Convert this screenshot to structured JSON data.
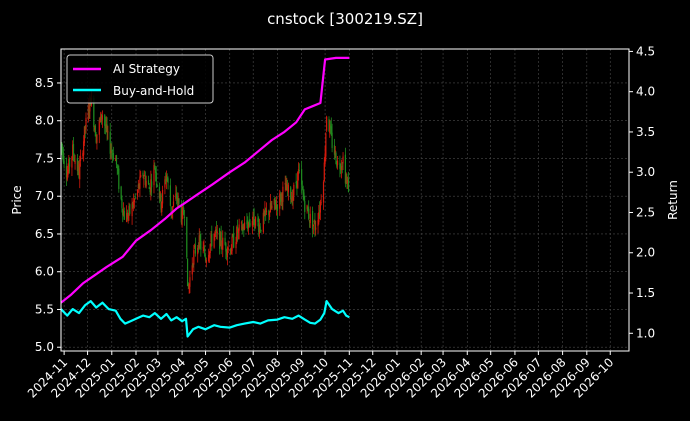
{
  "chart_data": {
    "type": "line",
    "title": "cnstock [300219.SZ]",
    "xlabel": "",
    "ylabel": "Price",
    "y2label": "Return",
    "x_range": [
      "2024-10-28",
      "2026-10-25"
    ],
    "ylim": [
      4.95,
      8.95
    ],
    "y2lim": [
      0.78,
      4.53
    ],
    "yticks": [
      5.0,
      5.5,
      6.0,
      6.5,
      7.0,
      7.5,
      8.0,
      8.5
    ],
    "ytick_labels": [
      "5.0",
      "5.5",
      "6.0",
      "6.5",
      "7.0",
      "7.5",
      "8.0",
      "8.5"
    ],
    "y2ticks": [
      1.0,
      1.5,
      2.0,
      2.5,
      3.0,
      3.5,
      4.0,
      4.5
    ],
    "y2tick_labels": [
      "1.0",
      "1.5",
      "2.0",
      "2.5",
      "3.0",
      "3.5",
      "4.0",
      "4.5"
    ],
    "xticks": [
      "2024-11-01",
      "2024-12-01",
      "2025-01-01",
      "2025-02-01",
      "2025-03-01",
      "2025-04-01",
      "2025-05-01",
      "2025-06-01",
      "2025-07-01",
      "2025-08-01",
      "2025-09-01",
      "2025-10-01",
      "2025-11-01",
      "2025-12-01",
      "2026-01-01",
      "2026-02-01",
      "2026-03-01",
      "2026-04-01",
      "2026-05-01",
      "2026-06-01",
      "2026-07-01",
      "2026-08-01",
      "2026-09-01",
      "2026-10-01"
    ],
    "xtick_labels": [
      "2024-11",
      "2024-12",
      "2025-01",
      "2025-02",
      "2025-03",
      "2025-04",
      "2025-05",
      "2025-06",
      "2025-07",
      "2025-08",
      "2025-09",
      "2025-10",
      "2025-11",
      "2025-12",
      "2026-01",
      "2026-02",
      "2026-03",
      "2026-04",
      "2026-05",
      "2026-06",
      "2026-07",
      "2026-08",
      "2026-09",
      "2026-10"
    ],
    "grid": true,
    "legend_position": "top-left",
    "colors": {
      "background": "#000000",
      "grid": "#4a4a4a",
      "text": "#ffffff",
      "up_candle": "#d31a0c",
      "down_candle": "#1f8a1f"
    },
    "price_keypoints": [
      [
        "2024-10-28",
        7.7
      ],
      [
        "2024-11-05",
        7.3
      ],
      [
        "2024-11-12",
        7.6
      ],
      [
        "2024-11-20",
        7.3
      ],
      [
        "2024-11-28",
        7.9
      ],
      [
        "2024-12-05",
        8.3
      ],
      [
        "2024-12-12",
        7.8
      ],
      [
        "2024-12-20",
        8.1
      ],
      [
        "2024-12-28",
        7.7
      ],
      [
        "2025-01-06",
        7.5
      ],
      [
        "2025-01-12",
        7.0
      ],
      [
        "2025-01-18",
        6.7
      ],
      [
        "2025-01-25",
        6.8
      ],
      [
        "2025-02-01",
        7.0
      ],
      [
        "2025-02-10",
        7.3
      ],
      [
        "2025-02-18",
        7.1
      ],
      [
        "2025-02-25",
        7.4
      ],
      [
        "2025-03-05",
        6.9
      ],
      [
        "2025-03-12",
        7.3
      ],
      [
        "2025-03-18",
        6.8
      ],
      [
        "2025-03-25",
        7.0
      ],
      [
        "2025-04-01",
        6.7
      ],
      [
        "2025-04-06",
        6.9
      ],
      [
        "2025-04-08",
        5.7
      ],
      [
        "2025-04-15",
        6.2
      ],
      [
        "2025-04-22",
        6.4
      ],
      [
        "2025-05-01",
        6.2
      ],
      [
        "2025-05-12",
        6.5
      ],
      [
        "2025-05-20",
        6.4
      ],
      [
        "2025-06-01",
        6.3
      ],
      [
        "2025-06-10",
        6.5
      ],
      [
        "2025-06-20",
        6.6
      ],
      [
        "2025-07-01",
        6.7
      ],
      [
        "2025-07-10",
        6.6
      ],
      [
        "2025-07-20",
        6.8
      ],
      [
        "2025-08-01",
        6.9
      ],
      [
        "2025-08-10",
        7.1
      ],
      [
        "2025-08-20",
        7.0
      ],
      [
        "2025-08-28",
        7.3
      ],
      [
        "2025-09-05",
        6.9
      ],
      [
        "2025-09-12",
        6.7
      ],
      [
        "2025-09-18",
        6.6
      ],
      [
        "2025-09-25",
        6.9
      ],
      [
        "2025-09-30",
        7.4
      ],
      [
        "2025-10-03",
        8.1
      ],
      [
        "2025-10-10",
        7.7
      ],
      [
        "2025-10-18",
        7.4
      ],
      [
        "2025-10-24",
        7.5
      ],
      [
        "2025-10-28",
        7.2
      ],
      [
        "2025-11-01",
        7.1
      ]
    ],
    "series": [
      {
        "name": "AI Strategy",
        "axis": "right",
        "color": "#ff00ff",
        "points": [
          [
            "2024-10-28",
            1.38
          ],
          [
            "2024-11-10",
            1.48
          ],
          [
            "2024-11-25",
            1.62
          ],
          [
            "2024-12-10",
            1.72
          ],
          [
            "2024-12-25",
            1.82
          ],
          [
            "2025-01-15",
            1.95
          ],
          [
            "2025-02-01",
            2.15
          ],
          [
            "2025-02-20",
            2.28
          ],
          [
            "2025-03-10",
            2.42
          ],
          [
            "2025-03-25",
            2.55
          ],
          [
            "2025-04-05",
            2.62
          ],
          [
            "2025-04-20",
            2.72
          ],
          [
            "2025-05-10",
            2.85
          ],
          [
            "2025-06-01",
            3.0
          ],
          [
            "2025-06-20",
            3.12
          ],
          [
            "2025-07-10",
            3.28
          ],
          [
            "2025-07-25",
            3.4
          ],
          [
            "2025-08-10",
            3.5
          ],
          [
            "2025-08-25",
            3.62
          ],
          [
            "2025-09-05",
            3.78
          ],
          [
            "2025-09-15",
            3.82
          ],
          [
            "2025-09-25",
            3.86
          ],
          [
            "2025-10-01",
            4.4
          ],
          [
            "2025-10-15",
            4.42
          ],
          [
            "2025-11-01",
            4.42
          ]
        ]
      },
      {
        "name": "Buy-and-Hold",
        "axis": "right",
        "color": "#00ffff",
        "points": [
          [
            "2024-10-28",
            1.3
          ],
          [
            "2024-11-05",
            1.22
          ],
          [
            "2024-11-12",
            1.3
          ],
          [
            "2024-11-20",
            1.25
          ],
          [
            "2024-11-28",
            1.35
          ],
          [
            "2024-12-05",
            1.4
          ],
          [
            "2024-12-12",
            1.32
          ],
          [
            "2024-12-20",
            1.38
          ],
          [
            "2024-12-28",
            1.3
          ],
          [
            "2025-01-06",
            1.28
          ],
          [
            "2025-01-12",
            1.18
          ],
          [
            "2025-01-18",
            1.12
          ],
          [
            "2025-01-25",
            1.15
          ],
          [
            "2025-02-01",
            1.18
          ],
          [
            "2025-02-10",
            1.22
          ],
          [
            "2025-02-18",
            1.2
          ],
          [
            "2025-02-25",
            1.25
          ],
          [
            "2025-03-05",
            1.18
          ],
          [
            "2025-03-12",
            1.24
          ],
          [
            "2025-03-18",
            1.16
          ],
          [
            "2025-03-25",
            1.2
          ],
          [
            "2025-04-01",
            1.15
          ],
          [
            "2025-04-06",
            1.18
          ],
          [
            "2025-04-08",
            0.96
          ],
          [
            "2025-04-15",
            1.05
          ],
          [
            "2025-04-22",
            1.08
          ],
          [
            "2025-05-01",
            1.05
          ],
          [
            "2025-05-12",
            1.1
          ],
          [
            "2025-05-20",
            1.08
          ],
          [
            "2025-06-01",
            1.07
          ],
          [
            "2025-06-10",
            1.1
          ],
          [
            "2025-06-20",
            1.12
          ],
          [
            "2025-07-01",
            1.14
          ],
          [
            "2025-07-10",
            1.12
          ],
          [
            "2025-07-20",
            1.16
          ],
          [
            "2025-08-01",
            1.17
          ],
          [
            "2025-08-10",
            1.2
          ],
          [
            "2025-08-20",
            1.18
          ],
          [
            "2025-08-28",
            1.22
          ],
          [
            "2025-09-05",
            1.17
          ],
          [
            "2025-09-12",
            1.13
          ],
          [
            "2025-09-18",
            1.12
          ],
          [
            "2025-09-25",
            1.17
          ],
          [
            "2025-09-30",
            1.25
          ],
          [
            "2025-10-03",
            1.4
          ],
          [
            "2025-10-10",
            1.3
          ],
          [
            "2025-10-18",
            1.25
          ],
          [
            "2025-10-24",
            1.28
          ],
          [
            "2025-10-28",
            1.22
          ],
          [
            "2025-11-01",
            1.2
          ]
        ]
      }
    ]
  }
}
